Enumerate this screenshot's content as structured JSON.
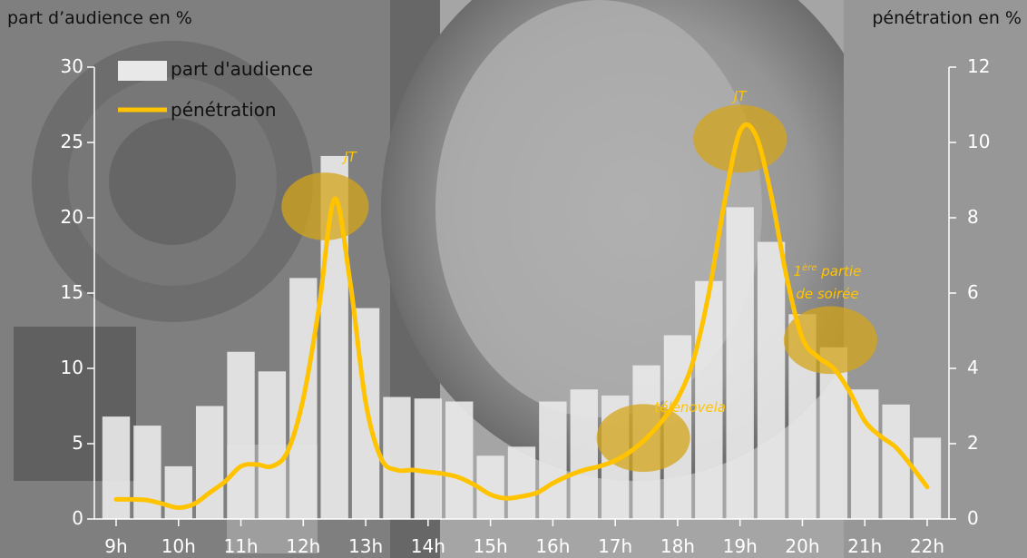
{
  "chart_data": {
    "type": "bar",
    "y_left_title": "part d’audience en %",
    "y_right_title": "pénétration en %",
    "ylim_left": [
      0,
      30
    ],
    "ylim_right": [
      0,
      12
    ],
    "y_left_ticks": [
      "0",
      "5",
      "10",
      "15",
      "20",
      "25",
      "30"
    ],
    "y_right_ticks": [
      "0",
      "2",
      "4",
      "6",
      "8",
      "10",
      "12"
    ],
    "x_ticks": [
      "9h",
      "10h",
      "11h",
      "12h",
      "13h",
      "14h",
      "15h",
      "16h",
      "17h",
      "18h",
      "19h",
      "20h",
      "21h",
      "22h"
    ],
    "x_range_hours": [
      9,
      22
    ],
    "bar_width_hours": 0.5,
    "legend": {
      "placement": "top-left",
      "bar_label": "part d'audience",
      "line_label": "pénétration"
    },
    "series": [
      {
        "name": "part d'audience",
        "type": "bar",
        "axis": "left",
        "color": "#e8e8e8",
        "x": [
          9.0,
          9.5,
          10.0,
          10.5,
          11.0,
          11.5,
          12.0,
          12.5,
          13.0,
          13.5,
          14.0,
          14.5,
          15.0,
          15.5,
          16.0,
          16.5,
          17.0,
          17.5,
          18.0,
          18.5,
          19.0,
          19.5,
          20.0,
          20.5,
          21.0,
          21.5,
          22.0
        ],
        "values": [
          6.8,
          6.2,
          3.5,
          7.5,
          11.1,
          9.8,
          16.0,
          24.1,
          14.0,
          8.1,
          8.0,
          7.8,
          4.2,
          4.8,
          7.8,
          8.6,
          8.2,
          10.2,
          12.2,
          15.8,
          20.7,
          18.4,
          13.6,
          11.4,
          8.6,
          7.6,
          5.4
        ]
      },
      {
        "name": "pénétration",
        "type": "line",
        "axis": "right",
        "color": "#ffc300",
        "x": [
          9.0,
          9.25,
          9.5,
          9.75,
          10.0,
          10.25,
          10.5,
          10.75,
          11.0,
          11.25,
          11.5,
          11.75,
          12.0,
          12.25,
          12.5,
          12.75,
          13.0,
          13.25,
          13.5,
          13.75,
          14.0,
          14.25,
          14.5,
          14.75,
          15.0,
          15.25,
          15.5,
          15.75,
          16.0,
          16.25,
          16.5,
          16.75,
          17.0,
          17.25,
          17.5,
          17.75,
          18.0,
          18.25,
          18.5,
          18.75,
          19.0,
          19.25,
          19.5,
          19.75,
          20.0,
          20.25,
          20.5,
          20.75,
          21.0,
          21.25,
          21.5,
          21.75,
          22.0
        ],
        "values": [
          0.52,
          0.52,
          0.5,
          0.4,
          0.3,
          0.4,
          0.7,
          1.0,
          1.4,
          1.45,
          1.4,
          1.8,
          3.2,
          5.6,
          8.5,
          6.3,
          3.1,
          1.6,
          1.3,
          1.3,
          1.25,
          1.2,
          1.1,
          0.9,
          0.65,
          0.55,
          0.6,
          0.7,
          0.95,
          1.15,
          1.3,
          1.4,
          1.55,
          1.8,
          2.15,
          2.6,
          3.2,
          4.2,
          6.0,
          8.4,
          10.3,
          10.2,
          8.6,
          6.4,
          4.8,
          4.3,
          4.0,
          3.4,
          2.6,
          2.2,
          1.9,
          1.4,
          0.85
        ]
      }
    ],
    "annotations": [
      {
        "text": "JT",
        "x": 12.75,
        "y_right": 9.6
      },
      {
        "text": "JT",
        "x": 19.0,
        "y_right": 11.2
      },
      {
        "text_html": "1<sup>ère</sup> partie",
        "x": 20.4,
        "y_right": 6.55
      },
      {
        "text": "de soirée",
        "x": 20.4,
        "y_right": 5.95
      },
      {
        "text": "télénovela",
        "x": 18.2,
        "y_right": 2.95
      }
    ],
    "highlights": [
      {
        "cx": 12.35,
        "cy_right": 8.3,
        "rx_hours": 0.7,
        "ry_right": 0.9
      },
      {
        "cx": 19.0,
        "cy_right": 10.1,
        "rx_hours": 0.75,
        "ry_right": 0.9
      },
      {
        "cx": 20.45,
        "cy_right": 4.75,
        "rx_hours": 0.75,
        "ry_right": 0.9
      },
      {
        "cx": 17.45,
        "cy_right": 2.15,
        "rx_hours": 0.75,
        "ry_right": 0.9
      }
    ],
    "colors": {
      "axis": "#ffffff",
      "tick_text": "#ffffff",
      "highlight": "#d4a41a",
      "annotation": "#ffc300"
    }
  }
}
